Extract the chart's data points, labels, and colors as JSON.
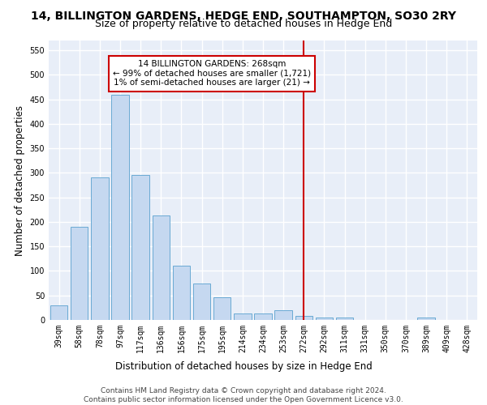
{
  "title": "14, BILLINGTON GARDENS, HEDGE END, SOUTHAMPTON, SO30 2RY",
  "subtitle": "Size of property relative to detached houses in Hedge End",
  "xlabel": "Distribution of detached houses by size in Hedge End",
  "ylabel": "Number of detached properties",
  "bar_labels": [
    "39sqm",
    "58sqm",
    "78sqm",
    "97sqm",
    "117sqm",
    "136sqm",
    "156sqm",
    "175sqm",
    "195sqm",
    "214sqm",
    "234sqm",
    "253sqm",
    "272sqm",
    "292sqm",
    "311sqm",
    "331sqm",
    "350sqm",
    "370sqm",
    "389sqm",
    "409sqm",
    "428sqm"
  ],
  "bar_values": [
    30,
    190,
    290,
    460,
    295,
    213,
    110,
    75,
    47,
    13,
    13,
    20,
    8,
    5,
    5,
    0,
    0,
    0,
    5,
    0,
    0
  ],
  "bar_color": "#c5d8f0",
  "bar_edge_color": "#6aaad4",
  "vline_x": 12,
  "vline_color": "#cc0000",
  "annotation_text": "14 BILLINGTON GARDENS: 268sqm\n← 99% of detached houses are smaller (1,721)\n1% of semi-detached houses are larger (21) →",
  "annotation_box_color": "#cc0000",
  "ylim": [
    0,
    570
  ],
  "yticks": [
    0,
    50,
    100,
    150,
    200,
    250,
    300,
    350,
    400,
    450,
    500,
    550
  ],
  "footer": "Contains HM Land Registry data © Crown copyright and database right 2024.\nContains public sector information licensed under the Open Government Licence v3.0.",
  "bg_color": "#e8eef8",
  "grid_color": "#ffffff",
  "title_fontsize": 10,
  "subtitle_fontsize": 9,
  "axis_label_fontsize": 8.5,
  "tick_fontsize": 7,
  "footer_fontsize": 6.5
}
